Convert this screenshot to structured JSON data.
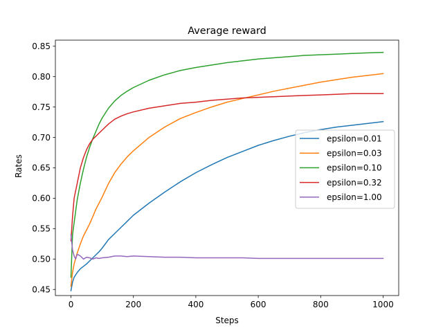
{
  "chart_data": {
    "type": "line",
    "title": "Average reward",
    "xlabel": "Steps",
    "ylabel": "Rates",
    "xlim": [
      -50,
      1050
    ],
    "ylim": [
      0.44,
      0.86
    ],
    "xticks": [
      0,
      200,
      400,
      600,
      800,
      1000
    ],
    "yticks": [
      0.45,
      0.5,
      0.55,
      0.6,
      0.65,
      0.7,
      0.75,
      0.8,
      0.85
    ],
    "xtick_labels": [
      "0",
      "200",
      "400",
      "600",
      "800",
      "1000"
    ],
    "ytick_labels": [
      "0.45",
      "0.50",
      "0.55",
      "0.60",
      "0.65",
      "0.70",
      "0.75",
      "0.80",
      "0.85"
    ],
    "grid": false,
    "legend_position": "center-right",
    "series": [
      {
        "name": "epsilon=0.01",
        "color": "#1f77b4",
        "x": [
          0,
          5,
          10,
          20,
          30,
          40,
          50,
          60,
          70,
          80,
          90,
          100,
          120,
          140,
          160,
          180,
          200,
          250,
          300,
          350,
          400,
          450,
          500,
          550,
          600,
          650,
          700,
          750,
          800,
          850,
          900,
          950,
          1000
        ],
        "y": [
          0.448,
          0.462,
          0.47,
          0.478,
          0.484,
          0.488,
          0.492,
          0.497,
          0.502,
          0.507,
          0.512,
          0.518,
          0.532,
          0.542,
          0.552,
          0.562,
          0.572,
          0.592,
          0.61,
          0.627,
          0.642,
          0.655,
          0.667,
          0.677,
          0.687,
          0.695,
          0.702,
          0.708,
          0.713,
          0.717,
          0.72,
          0.723,
          0.726
        ]
      },
      {
        "name": "epsilon=0.03",
        "color": "#ff7f0e",
        "x": [
          0,
          5,
          10,
          20,
          30,
          40,
          50,
          60,
          70,
          80,
          90,
          100,
          120,
          140,
          160,
          180,
          200,
          250,
          300,
          350,
          400,
          450,
          500,
          550,
          600,
          650,
          700,
          750,
          800,
          850,
          900,
          950,
          1000
        ],
        "y": [
          0.455,
          0.478,
          0.492,
          0.51,
          0.525,
          0.538,
          0.548,
          0.558,
          0.57,
          0.582,
          0.592,
          0.602,
          0.624,
          0.642,
          0.656,
          0.668,
          0.678,
          0.7,
          0.717,
          0.731,
          0.741,
          0.75,
          0.758,
          0.764,
          0.77,
          0.776,
          0.781,
          0.786,
          0.791,
          0.795,
          0.799,
          0.802,
          0.805
        ]
      },
      {
        "name": "epsilon=0.10",
        "color": "#2ca02c",
        "x": [
          0,
          5,
          10,
          20,
          30,
          40,
          50,
          60,
          70,
          80,
          90,
          100,
          120,
          140,
          160,
          180,
          200,
          250,
          300,
          350,
          400,
          450,
          500,
          550,
          600,
          650,
          700,
          750,
          800,
          850,
          900,
          950,
          1000
        ],
        "y": [
          0.47,
          0.54,
          0.56,
          0.598,
          0.625,
          0.648,
          0.668,
          0.684,
          0.698,
          0.71,
          0.722,
          0.732,
          0.748,
          0.76,
          0.769,
          0.776,
          0.782,
          0.794,
          0.803,
          0.81,
          0.815,
          0.819,
          0.823,
          0.826,
          0.829,
          0.831,
          0.833,
          0.835,
          0.836,
          0.837,
          0.838,
          0.839,
          0.84
        ]
      },
      {
        "name": "epsilon=0.32",
        "color": "#d62728",
        "x": [
          0,
          5,
          10,
          20,
          30,
          40,
          50,
          60,
          70,
          80,
          90,
          100,
          120,
          140,
          160,
          180,
          200,
          250,
          300,
          350,
          400,
          450,
          500,
          550,
          600,
          650,
          700,
          750,
          800,
          850,
          900,
          950,
          1000
        ],
        "y": [
          0.53,
          0.57,
          0.6,
          0.625,
          0.65,
          0.667,
          0.68,
          0.69,
          0.697,
          0.702,
          0.707,
          0.712,
          0.722,
          0.73,
          0.735,
          0.739,
          0.742,
          0.748,
          0.752,
          0.756,
          0.758,
          0.761,
          0.763,
          0.765,
          0.766,
          0.767,
          0.768,
          0.769,
          0.77,
          0.771,
          0.772,
          0.772,
          0.772
        ]
      },
      {
        "name": "epsilon=1.00",
        "color": "#9467bd",
        "x": [
          0,
          5,
          10,
          15,
          20,
          30,
          40,
          50,
          60,
          70,
          80,
          90,
          100,
          120,
          140,
          160,
          180,
          200,
          250,
          300,
          350,
          400,
          450,
          500,
          550,
          600,
          650,
          700,
          750,
          800,
          850,
          900,
          950,
          1000
        ],
        "y": [
          0.54,
          0.515,
          0.505,
          0.5,
          0.508,
          0.505,
          0.5,
          0.503,
          0.502,
          0.5,
          0.502,
          0.501,
          0.502,
          0.503,
          0.505,
          0.505,
          0.504,
          0.505,
          0.504,
          0.503,
          0.503,
          0.502,
          0.502,
          0.502,
          0.502,
          0.501,
          0.501,
          0.501,
          0.501,
          0.501,
          0.501,
          0.501,
          0.501,
          0.501
        ]
      }
    ]
  }
}
